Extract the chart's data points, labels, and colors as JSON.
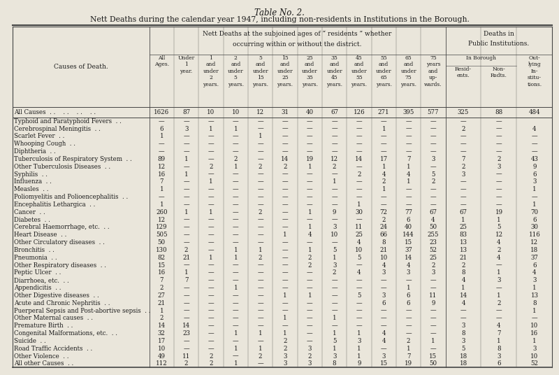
{
  "title1": "Table No. 2.",
  "title2": "Nett Deaths during the calendar year 1947, including non-residents in Institutions in the Borough.",
  "header1": "Nett Deaths at the subjoined ages of “ residents ” whether",
  "header2": "occurring within or without the district.",
  "header3": "Deaths in",
  "header4": "Public Institutions.",
  "col_header_left": "Causes of Death.",
  "summary_row": [
    "All Causes",
    "1626",
    "87",
    "10",
    "10",
    "12",
    "31",
    "40",
    "67",
    "126",
    "271",
    "395",
    "577",
    "325",
    "88",
    "484"
  ],
  "rows": [
    [
      "Typhoid and Paratyphoid Fevers",
      "—",
      "—",
      "—",
      "—",
      "—",
      "—",
      "—",
      "—",
      "—",
      "—",
      "—",
      "—",
      "—",
      "—"
    ],
    [
      "Cerebrospinal Meningitis",
      "6",
      "3",
      "1",
      "1",
      "—",
      "—",
      "—",
      "—",
      "—",
      "1",
      "—",
      "—",
      "2",
      "—",
      "4"
    ],
    [
      "Scarlet Fever",
      "1",
      "—",
      "—",
      "—",
      "1",
      "—",
      "—",
      "—",
      "—",
      "—",
      "—",
      "—",
      "—",
      "—",
      "—"
    ],
    [
      "Whooping Cough",
      "—",
      "—",
      "—",
      "—",
      "—",
      "—",
      "—",
      "—",
      "—",
      "—",
      "—",
      "—",
      "—",
      "—",
      "—"
    ],
    [
      "Diphtheria",
      "—",
      "—",
      "—",
      "—",
      "—",
      "—",
      "—",
      "—",
      "—",
      "—",
      "—",
      "—",
      "—",
      "—",
      "—"
    ],
    [
      "Tuberculosis of Respiratory System",
      "89",
      "1",
      "—",
      "2",
      "—",
      "14",
      "19",
      "12",
      "14",
      "17",
      "7",
      "3",
      "7",
      "2",
      "43"
    ],
    [
      "Other Tuberculosis Diseases",
      "12",
      "—",
      "2",
      "1",
      "2",
      "2",
      "1",
      "2",
      "—",
      "1",
      "1",
      "—",
      "2",
      "3",
      "9"
    ],
    [
      "Syphilis",
      "16",
      "1",
      "—",
      "—",
      "—",
      "—",
      "—",
      "—",
      "2",
      "4",
      "4",
      "5",
      "3",
      "—",
      "6"
    ],
    [
      "Influenza",
      "7",
      "—",
      "1",
      "—",
      "—",
      "—",
      "—",
      "1",
      "—",
      "2",
      "1",
      "2",
      "—",
      "—",
      "3"
    ],
    [
      "Measles",
      "1",
      "—",
      "—",
      "—",
      "—",
      "—",
      "—",
      "—",
      "—",
      "1",
      "—",
      "—",
      "—",
      "—",
      "1"
    ],
    [
      "Poliomyelitis and Polioencephalitis",
      "—",
      "—",
      "—",
      "—",
      "—",
      "—",
      "—",
      "—",
      "—",
      "—",
      "—",
      "—",
      "—",
      "—",
      "—"
    ],
    [
      "Encephalitis Lethargica",
      "1",
      "—",
      "—",
      "—",
      "—",
      "—",
      "—",
      "—",
      "1",
      "—",
      "—",
      "—",
      "—",
      "—",
      "1"
    ],
    [
      "Cancer",
      "260",
      "1",
      "1",
      "—",
      "2",
      "—",
      "1",
      "9",
      "30",
      "72",
      "77",
      "67",
      "67",
      "19",
      "70"
    ],
    [
      "Diabetes",
      "12",
      "—",
      "—",
      "—",
      "—",
      "—",
      "—",
      "—",
      "—",
      "2",
      "6",
      "4",
      "1",
      "1",
      "6"
    ],
    [
      "Cerebral Haemorrhage, etc.",
      "129",
      "—",
      "—",
      "—",
      "—",
      "—",
      "1",
      "3",
      "11",
      "24",
      "40",
      "50",
      "25",
      "5",
      "30"
    ],
    [
      "Heart Disease",
      "505",
      "—",
      "—",
      "—",
      "—",
      "1",
      "4",
      "10",
      "25",
      "66",
      "144",
      "255",
      "83",
      "12",
      "116"
    ],
    [
      "Other Circulatory diseases",
      "50",
      "—",
      "—",
      "—",
      "—",
      "—",
      "—",
      "—",
      "4",
      "8",
      "15",
      "23",
      "13",
      "4",
      "12"
    ],
    [
      "Bronchitis",
      "130",
      "2",
      "—",
      "1",
      "1",
      "—",
      "1",
      "5",
      "10",
      "21",
      "37",
      "52",
      "13",
      "2",
      "18"
    ],
    [
      "Pneumonia",
      "82",
      "21",
      "1",
      "1",
      "2",
      "—",
      "2",
      "1",
      "5",
      "10",
      "14",
      "25",
      "21",
      "4",
      "37"
    ],
    [
      "Other Respiratory diseases",
      "15",
      "—",
      "—",
      "—",
      "—",
      "—",
      "2",
      "3",
      "—",
      "4",
      "4",
      "2",
      "2",
      "—",
      "6"
    ],
    [
      "Peptic Ulcer",
      "16",
      "1",
      "—",
      "—",
      "—",
      "—",
      "—",
      "2",
      "4",
      "3",
      "3",
      "3",
      "8",
      "1",
      "4"
    ],
    [
      "Diarrhoea, etc.",
      "7",
      "7",
      "—",
      "—",
      "—",
      "—",
      "—",
      "—",
      "—",
      "—",
      "—",
      "—",
      "4",
      "3",
      "3"
    ],
    [
      "Appendicitis",
      "2",
      "—",
      "—",
      "1",
      "—",
      "—",
      "—",
      "—",
      "—",
      "—",
      "1",
      "—",
      "1",
      "—",
      "1"
    ],
    [
      "Other Digestive diseases",
      "27",
      "—",
      "—",
      "—",
      "—",
      "1",
      "1",
      "—",
      "5",
      "3",
      "6",
      "11",
      "14",
      "1",
      "13"
    ],
    [
      "Acute and Chronic Nephritis",
      "21",
      "—",
      "—",
      "—",
      "—",
      "—",
      "—",
      "—",
      "—",
      "6",
      "6",
      "9",
      "4",
      "2",
      "8"
    ],
    [
      "Puerperal Sepsis and Post-abortive sepsis",
      "1",
      "—",
      "—",
      "—",
      "—",
      "—",
      "—",
      "—",
      "—",
      "—",
      "—",
      "—",
      "—",
      "—",
      "1"
    ],
    [
      "Other Maternal causes",
      "2",
      "—",
      "—",
      "—",
      "—",
      "1",
      "—",
      "1",
      "—",
      "—",
      "—",
      "—",
      "—",
      "—",
      "—"
    ],
    [
      "Premature Birth",
      "14",
      "14",
      "—",
      "—",
      "—",
      "—",
      "—",
      "—",
      "—",
      "—",
      "—",
      "—",
      "3",
      "4",
      "10"
    ],
    [
      "Congenital Malformations, etc.",
      "32",
      "23",
      "—",
      "1",
      "1",
      "1",
      "—",
      "1",
      "1",
      "4",
      "—",
      "—",
      "8",
      "7",
      "16"
    ],
    [
      "Suicide",
      "17",
      "—",
      "—",
      "—",
      "—",
      "2",
      "—",
      "5",
      "3",
      "4",
      "2",
      "1",
      "3",
      "1",
      "1"
    ],
    [
      "Road Traffic Accidents",
      "10",
      "—",
      "—",
      "1",
      "1",
      "2",
      "3",
      "1",
      "1",
      "—",
      "1",
      "—",
      "5",
      "8",
      "3"
    ],
    [
      "Other Violence",
      "49",
      "11",
      "2",
      "—",
      "2",
      "3",
      "2",
      "3",
      "1",
      "3",
      "7",
      "15",
      "18",
      "3",
      "10"
    ],
    [
      "All other Causes",
      "112",
      "2",
      "2",
      "1",
      "—",
      "3",
      "3",
      "8",
      "9",
      "15",
      "19",
      "50",
      "18",
      "6",
      "52"
    ]
  ],
  "age_col_labels": [
    "All\nAges.",
    "Under\n1\nyear.",
    "1\nand\nunder\n2\nyears.",
    "2\nand\nunder\n5\nyears.",
    "5\nand\nunder\n15\nyears.",
    "15\nand\nunder\n25\nyears.",
    "25\nand\nunder\n35\nyears.",
    "35\nand\nunder\n45\nyears.",
    "45\nand\nunder\n55\nyears.",
    "55\nand\nunder\n65\nyears.",
    "65\nand\nunder\n75\nyears.",
    "75\nyears\nand\nup-\nwards."
  ],
  "inst_col_labels": [
    "Resid-\nents.",
    "Non-\nRsdts.",
    "Out-\nlying\nIn-\nstitu-\ntions."
  ],
  "bg_color": "#eae6db",
  "text_color": "#1a1a1a",
  "line_color": "#444444"
}
